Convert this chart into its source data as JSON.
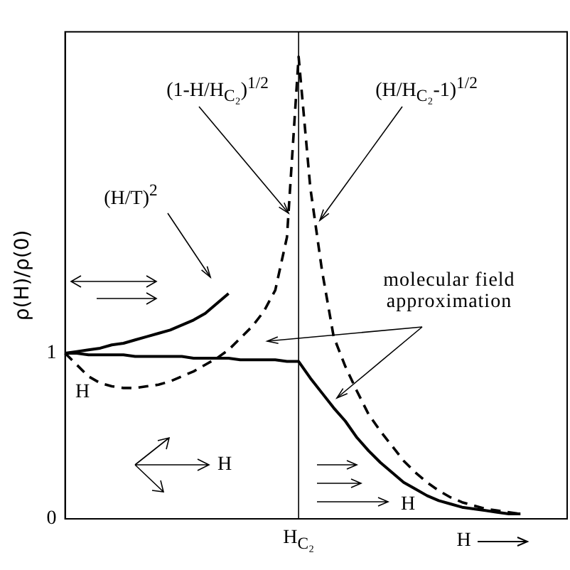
{
  "chart_data": {
    "type": "line",
    "ylabel": "ρ(H)/ρ(0)",
    "xlabel": "H",
    "categories": [
      null,
      null,
      null,
      null,
      null,
      null,
      null,
      null,
      null,
      null,
      null,
      null,
      null,
      null,
      null,
      null,
      null,
      null,
      null,
      null,
      "H$_{C₂}$",
      null,
      null,
      null,
      null,
      null,
      null,
      null,
      null,
      null,
      null,
      null,
      null,
      null,
      null,
      null,
      null,
      null,
      null,
      null,
      null,
      null,
      null,
      null
    ],
    "ylim": [
      0,
      2.94
    ],
    "yticks": [
      0,
      1
    ],
    "grid": false,
    "legend": false,
    "marker": "none",
    "series": [
      {
        "color": "#000000",
        "line_style": "solid",
        "values": [
          1,
          1,
          0.99,
          0.99,
          0.99,
          0.99,
          0.98,
          0.98,
          0.98,
          0.98,
          0.98,
          0.97,
          0.97,
          0.97,
          0.97,
          0.96,
          0.96,
          0.96,
          0.96,
          0.95,
          0.95,
          0.85,
          0.76,
          0.67,
          0.59,
          0.49,
          0.41,
          0.34,
          0.28,
          0.22,
          0.18,
          0.14,
          0.11,
          0.09,
          0.07,
          0.06,
          0.05,
          0.04,
          0.03,
          0.03,
          null,
          null,
          null,
          null
        ]
      },
      {
        "color": "#000000",
        "line_style": "solid",
        "values": [
          1,
          1.01,
          1.02,
          1.03,
          1.05,
          1.06,
          1.08,
          1.1,
          1.12,
          1.14,
          1.17,
          1.2,
          1.24,
          1.3,
          1.36,
          null,
          null,
          null,
          null,
          null,
          null,
          null,
          null,
          null,
          null,
          null,
          null,
          null,
          null,
          null,
          null,
          null,
          null,
          null,
          null,
          null,
          null,
          null,
          null,
          null,
          null,
          null,
          null,
          null
        ]
      },
      {
        "color": "#000000",
        "line_style": "dashed",
        "values": [
          1,
          0.93,
          0.86,
          0.82,
          0.8,
          0.79,
          0.79,
          0.8,
          0.81,
          0.83,
          0.86,
          0.89,
          0.93,
          0.97,
          1.02,
          1.09,
          1.16,
          1.25,
          1.38,
          1.7,
          2.79,
          2.0,
          1.5,
          1.1,
          0.92,
          0.77,
          0.63,
          0.53,
          0.44,
          0.35,
          0.28,
          0.22,
          0.17,
          0.13,
          0.1,
          0.08,
          0.06,
          0.05,
          0.04,
          0.03,
          null,
          null,
          null,
          null
        ]
      }
    ],
    "ref_lines": [
      {
        "axis": "x",
        "value": "H$_{C₂}$",
        "color": "#000000"
      }
    ],
    "annotations": [
      "(H/T)$^{2}$",
      "(1-H/H$_{C₂}$)$^{1/2}$",
      "(H/H$_{C₂}$-1)$^{1/2}$",
      "molecular field approximation",
      "H",
      "H",
      "H"
    ]
  }
}
